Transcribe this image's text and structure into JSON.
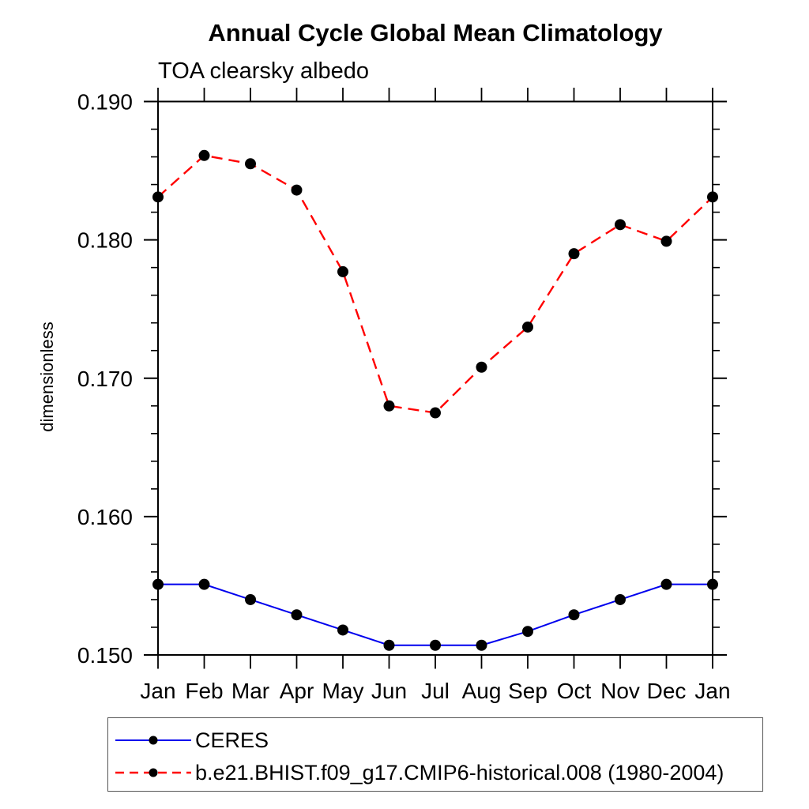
{
  "chart_data": {
    "type": "line",
    "title": "Annual Cycle Global Mean Climatology",
    "subtitle": "TOA clearsky albedo",
    "ylabel": "dimensionless",
    "xlabel": "",
    "x_tick_labels": [
      "Jan",
      "Feb",
      "Mar",
      "Apr",
      "May",
      "Jun",
      "Jul",
      "Aug",
      "Sep",
      "Oct",
      "Nov",
      "Dec",
      "Jan"
    ],
    "y_tick_labels": [
      "0.150",
      "0.160",
      "0.170",
      "0.180",
      "0.190"
    ],
    "ylim": [
      0.15,
      0.19
    ],
    "y_major_step": 0.01,
    "y_minor_step": 0.002,
    "grid": "off",
    "legend_position": "bottom-left",
    "axis_color": "#000000",
    "marker_color": "#000000",
    "series": [
      {
        "name": "CERES",
        "color": "#0000ee",
        "line_style": "solid",
        "marker": "circle",
        "values": [
          0.1551,
          0.1551,
          0.154,
          0.1529,
          0.1518,
          0.1507,
          0.1507,
          0.1507,
          0.1517,
          0.1529,
          0.154,
          0.1551,
          0.1551
        ]
      },
      {
        "name": "b.e21.BHIST.f09_g17.CMIP6-historical.008 (1980-2004)",
        "color": "#ff0000",
        "line_style": "dashed",
        "marker": "circle",
        "values": [
          0.1831,
          0.1861,
          0.1855,
          0.1836,
          0.1777,
          0.168,
          0.1675,
          0.1708,
          0.1737,
          0.179,
          0.1811,
          0.1799,
          0.1831
        ]
      }
    ]
  }
}
